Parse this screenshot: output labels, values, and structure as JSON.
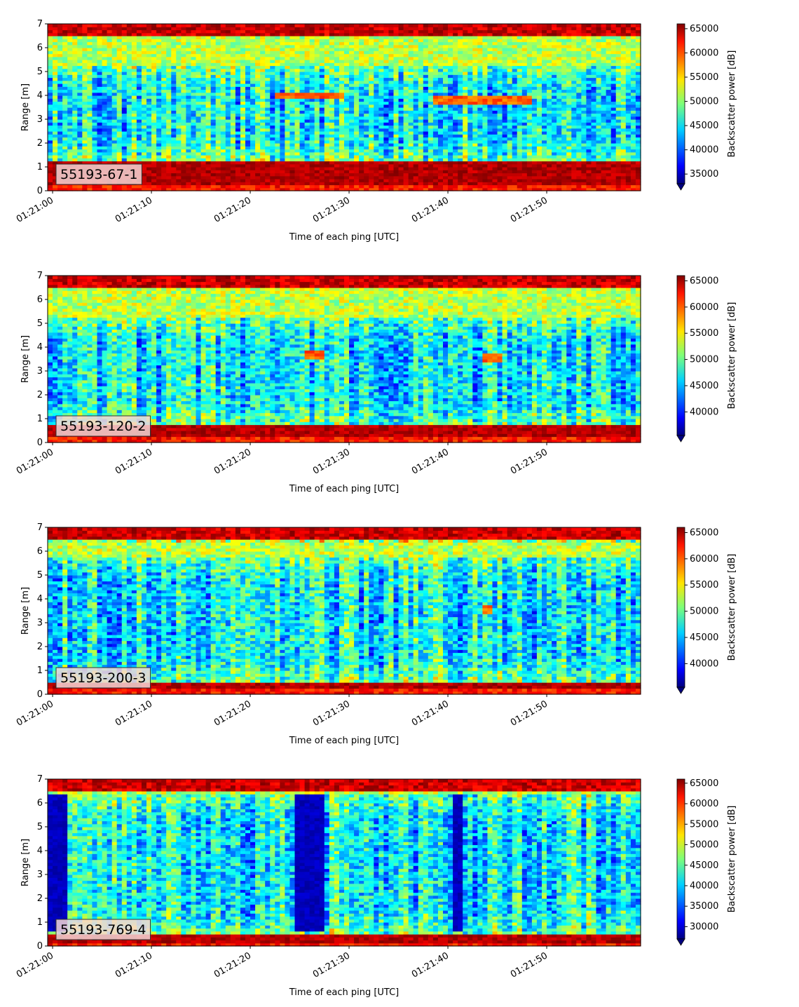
{
  "chart_data": [
    {
      "type": "heatmap",
      "label": "55193-67-1",
      "xlabel": "Time of each ping [UTC]",
      "ylabel": "Range [m]",
      "xticks": [
        "01:21:00",
        "01:21:10",
        "01:21:20",
        "01:21:30",
        "01:21:40",
        "01:21:50"
      ],
      "xlim_seconds_after_012100": [
        0,
        60
      ],
      "yticks": [
        "0",
        "1",
        "2",
        "3",
        "4",
        "5",
        "6",
        "7"
      ],
      "ylim": [
        0,
        7
      ],
      "colorbar": {
        "label": "Backscatter power [dB]",
        "colormap": "jet",
        "extend": "min",
        "ticks": [
          "35000",
          "40000",
          "45000",
          "50000",
          "55000",
          "60000",
          "65000"
        ],
        "range": [
          33000,
          66000
        ]
      },
      "structure": {
        "bottom_band_m": [
          0.25,
          1.2
        ],
        "top_band_m": [
          6.5,
          7.0
        ],
        "near_surface_layer_m": [
          5.3,
          6.5
        ],
        "targets": [
          {
            "t_s": [
              23,
              30
            ],
            "range_m": 4.0
          },
          {
            "t_s": [
              39,
              49
            ],
            "range_m": 3.8
          }
        ]
      }
    },
    {
      "type": "heatmap",
      "label": "55193-120-2",
      "xlabel": "Time of each ping [UTC]",
      "ylabel": "Range [m]",
      "xticks": [
        "01:21:00",
        "01:21:10",
        "01:21:20",
        "01:21:30",
        "01:21:40",
        "01:21:50"
      ],
      "xlim_seconds_after_012100": [
        0,
        60
      ],
      "yticks": [
        "0",
        "1",
        "2",
        "3",
        "4",
        "5",
        "6",
        "7"
      ],
      "ylim": [
        0,
        7
      ],
      "colorbar": {
        "label": "Backscatter power [dB]",
        "colormap": "jet",
        "extend": "min",
        "ticks": [
          "40000",
          "45000",
          "50000",
          "55000",
          "60000",
          "65000"
        ],
        "range": [
          35500,
          66000
        ]
      },
      "structure": {
        "bottom_band_m": [
          0.2,
          0.7
        ],
        "top_band_m": [
          6.5,
          7.0
        ],
        "near_surface_layer_m": [
          5.3,
          6.5
        ],
        "targets": [
          {
            "t_s": [
              26,
              28
            ],
            "range_m": 3.7
          },
          {
            "t_s": [
              44,
              46
            ],
            "range_m": 3.6
          }
        ]
      }
    },
    {
      "type": "heatmap",
      "label": "55193-200-3",
      "xlabel": "Time of each ping [UTC]",
      "ylabel": "Range [m]",
      "xticks": [
        "01:21:00",
        "01:21:10",
        "01:21:20",
        "01:21:30",
        "01:21:40",
        "01:21:50"
      ],
      "xlim_seconds_after_012100": [
        0,
        60
      ],
      "yticks": [
        "0",
        "1",
        "2",
        "3",
        "4",
        "5",
        "6",
        "7"
      ],
      "ylim": [
        0,
        7
      ],
      "colorbar": {
        "label": "Backscatter power [dB]",
        "colormap": "jet",
        "extend": "min",
        "ticks": [
          "40000",
          "45000",
          "50000",
          "55000",
          "60000",
          "65000"
        ],
        "range": [
          35500,
          66000
        ]
      },
      "structure": {
        "bottom_band_m": [
          0.2,
          0.5
        ],
        "top_band_m": [
          6.5,
          7.0
        ],
        "near_surface_layer_m": [
          5.8,
          6.4
        ],
        "targets": [
          {
            "t_s": [
              44,
              45
            ],
            "range_m": 3.6
          }
        ]
      }
    },
    {
      "type": "heatmap",
      "label": "55193-769-4",
      "xlabel": "Time of each ping [UTC]",
      "ylabel": "Range [m]",
      "xticks": [
        "01:21:00",
        "01:21:10",
        "01:21:20",
        "01:21:30",
        "01:21:40",
        "01:21:50"
      ],
      "xlim_seconds_after_012100": [
        0,
        60
      ],
      "yticks": [
        "0",
        "1",
        "2",
        "3",
        "4",
        "5",
        "6",
        "7"
      ],
      "ylim": [
        0,
        7
      ],
      "colorbar": {
        "label": "Backscatter power [dB]",
        "colormap": "jet",
        "extend": "min",
        "ticks": [
          "30000",
          "35000",
          "40000",
          "45000",
          "50000",
          "55000",
          "60000",
          "65000"
        ],
        "range": [
          27000,
          66000
        ]
      },
      "structure": {
        "bottom_band_m": [
          0.1,
          0.5
        ],
        "top_band_m": [
          6.5,
          7.0
        ],
        "near_surface_layer_m": [
          6.4,
          6.9
        ],
        "dark_columns_s": [
          [
            0,
            2
          ],
          [
            25,
            28
          ],
          [
            41,
            42
          ]
        ]
      }
    }
  ]
}
